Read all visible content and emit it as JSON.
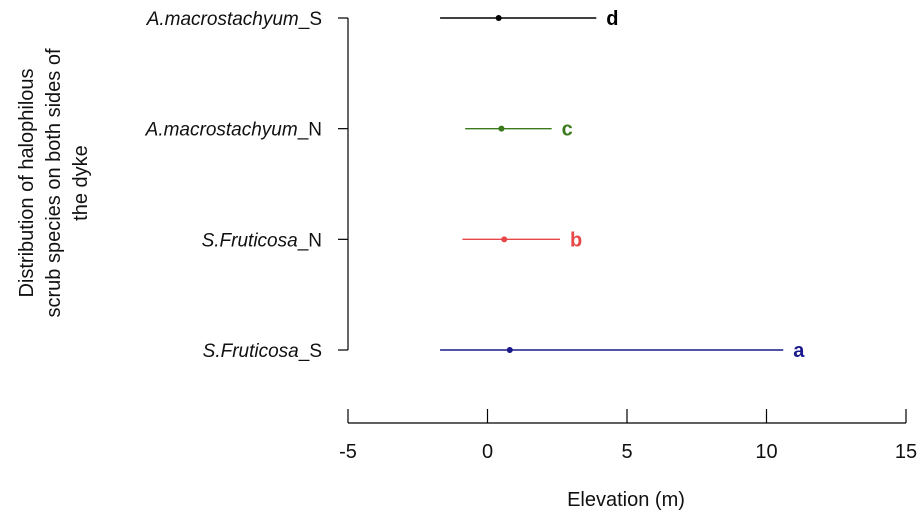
{
  "chart_data": {
    "type": "scatter",
    "xlabel": "Elevation (m)",
    "ylabel": [
      "Distribution of halophilous",
      "scrub species on both sides of",
      "the dyke"
    ],
    "xlim": [
      -5,
      15
    ],
    "x_ticks": [
      -5,
      0,
      5,
      10,
      15
    ],
    "grid": false,
    "series": [
      {
        "category_italic": "A.macrostachyum",
        "category_suffix": "_S",
        "mean": 0.4,
        "low": -1.7,
        "high": 3.9,
        "group": "d",
        "color": "#000000"
      },
      {
        "category_italic": "A.macrostachyum",
        "category_suffix": "_N",
        "mean": 0.5,
        "low": -0.8,
        "high": 2.3,
        "group": "c",
        "color": "#3a7a1a"
      },
      {
        "category_italic": "S.Fruticosa",
        "category_suffix": "_N",
        "mean": 0.6,
        "low": -0.9,
        "high": 2.6,
        "group": "b",
        "color": "#e8474a"
      },
      {
        "category_italic": "S.Fruticosa",
        "category_suffix": "_S",
        "mean": 0.8,
        "low": -1.7,
        "high": 10.6,
        "group": "a",
        "color": "#1a1a8c"
      }
    ]
  }
}
